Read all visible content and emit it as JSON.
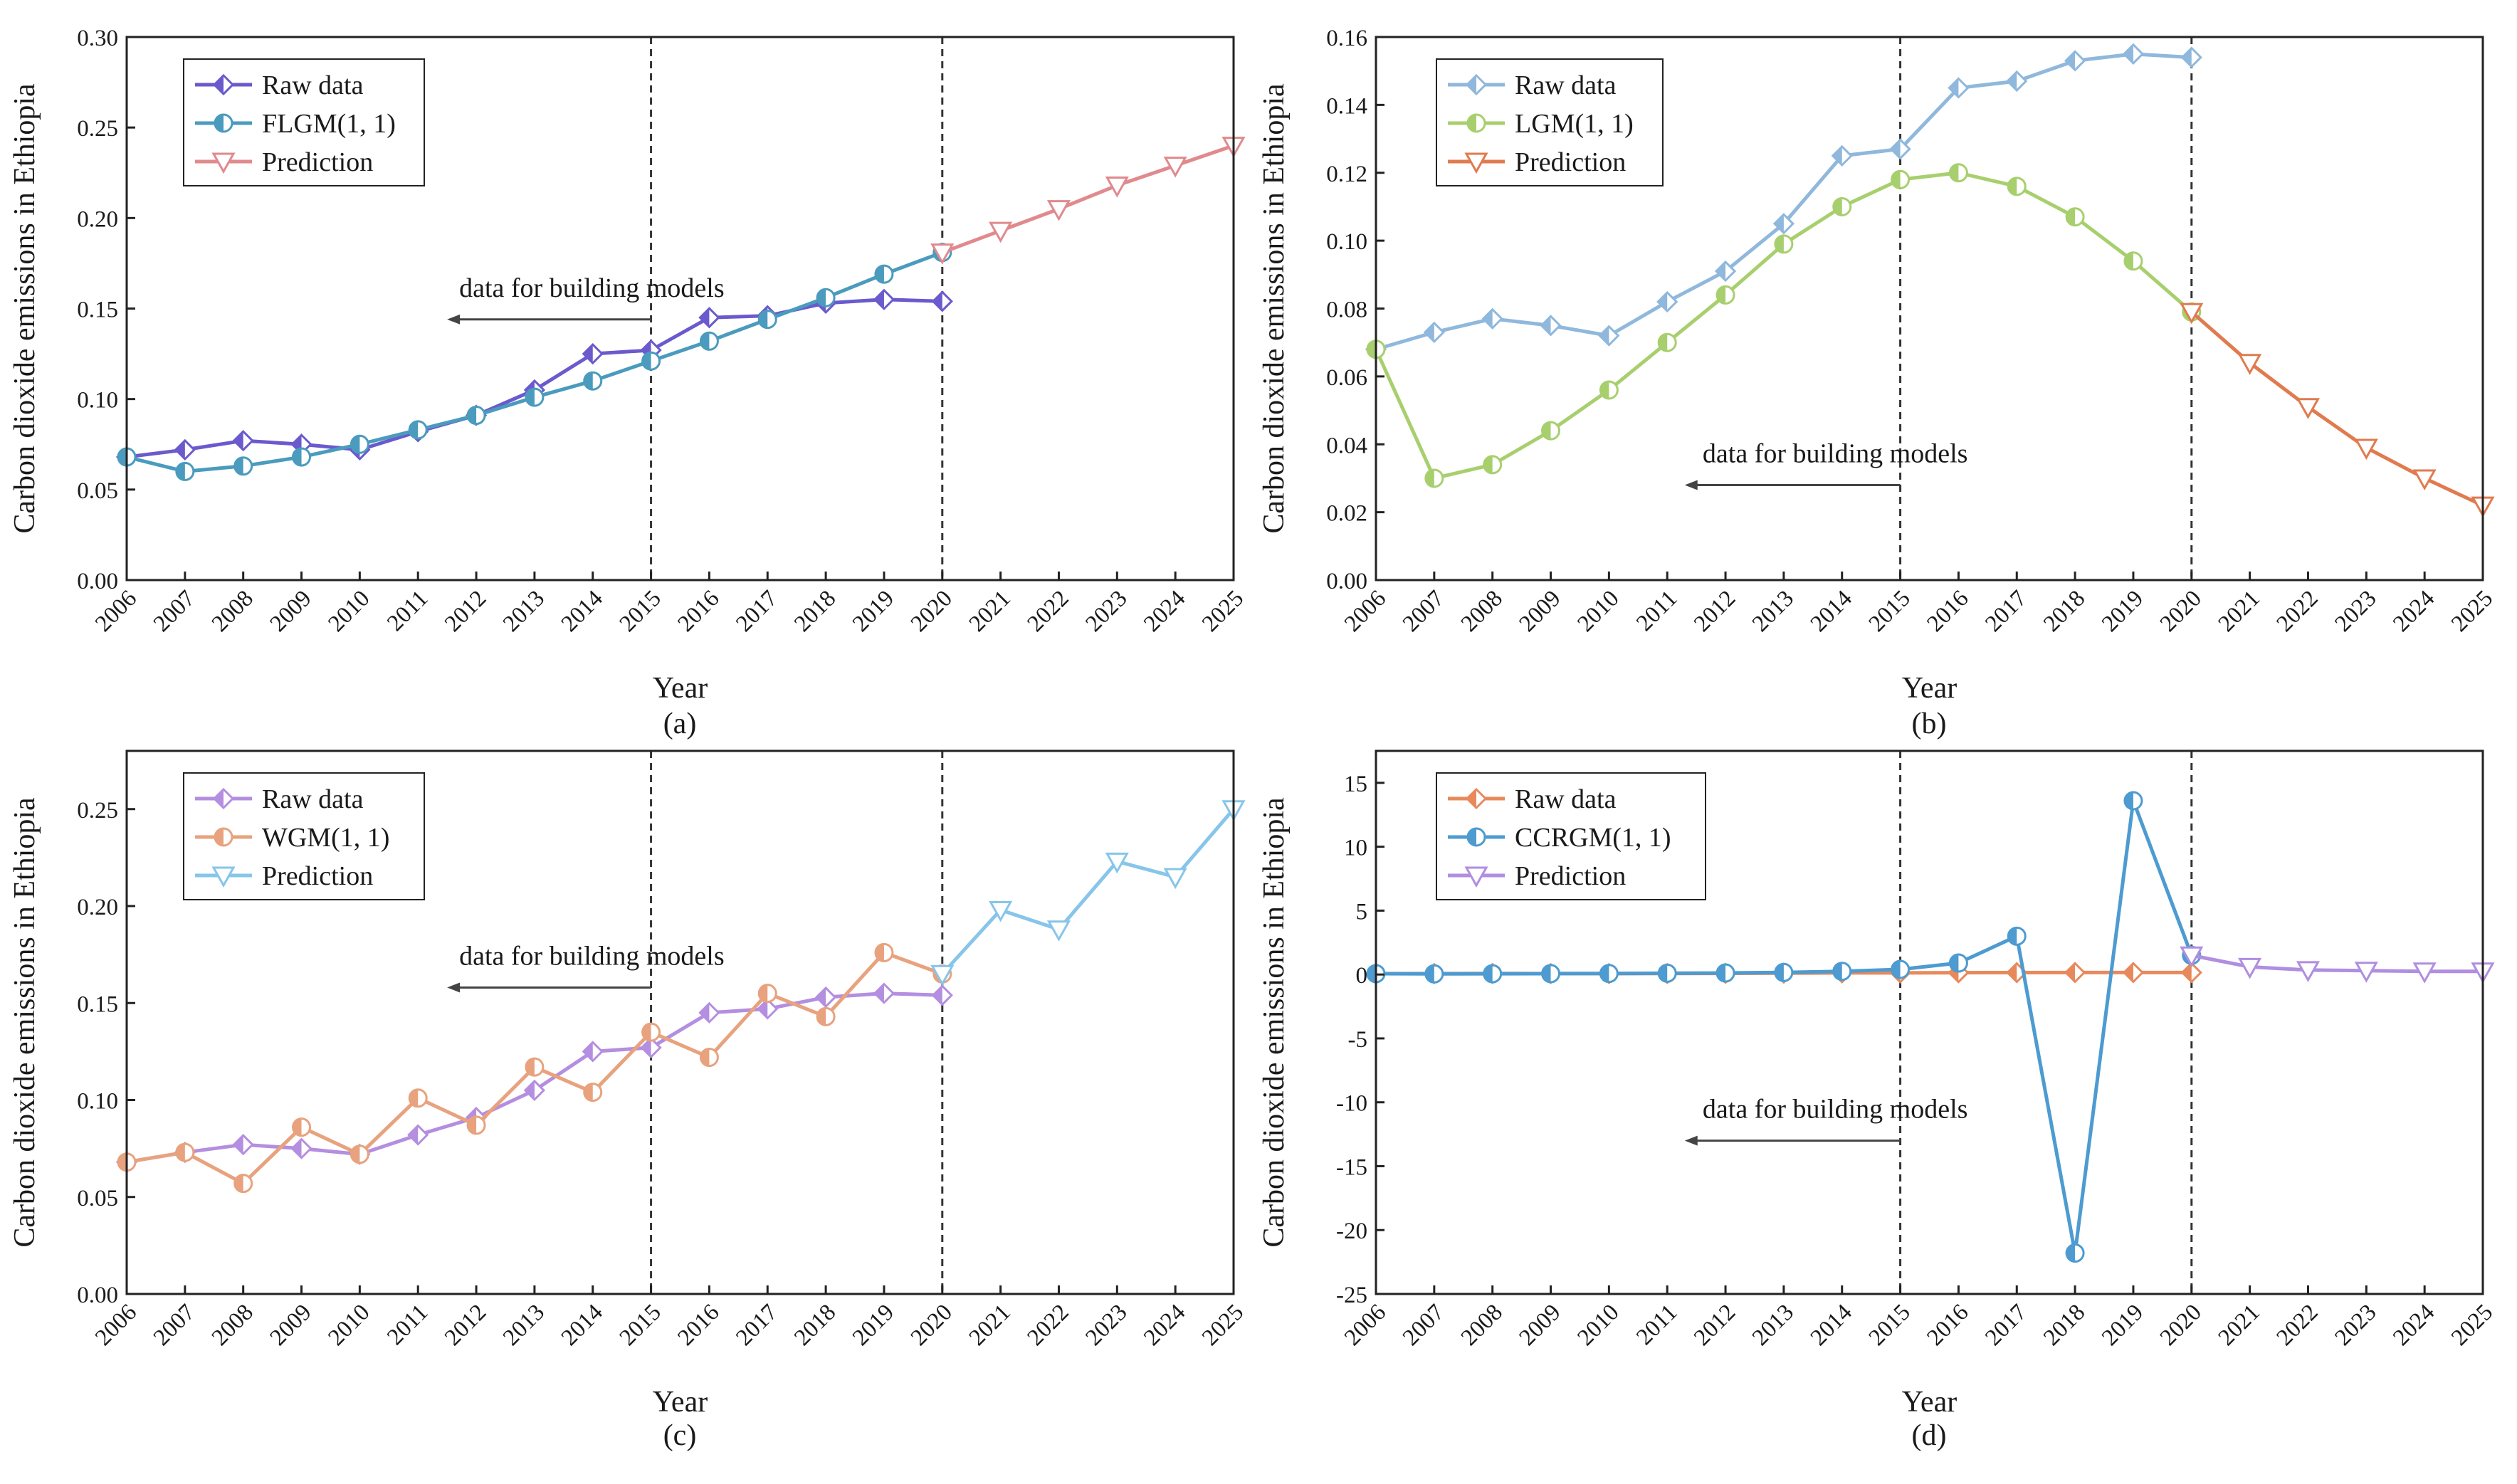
{
  "figure": {
    "background": "#ffffff"
  },
  "chart_data": [
    {
      "type": "line",
      "panel_label": "(a)",
      "title": "",
      "xlabel": "Year",
      "ylabel": "Carbon dioxide emissions in Ethiopia",
      "xlim": [
        2006,
        2025
      ],
      "ylim": [
        0,
        0.3
      ],
      "yticks": [
        "0.00",
        "0.05",
        "0.10",
        "0.15",
        "0.20",
        "0.25",
        "0.30"
      ],
      "ytick_values": [
        0,
        0.05,
        0.1,
        0.15,
        0.2,
        0.25,
        0.3
      ],
      "xticks": [
        "2006",
        "2007",
        "2008",
        "2009",
        "2010",
        "2011",
        "2012",
        "2013",
        "2014",
        "2015",
        "2016",
        "2017",
        "2018",
        "2019",
        "2020",
        "2021",
        "2022",
        "2023",
        "2024",
        "2025"
      ],
      "vlines": [
        2015,
        2020
      ],
      "annotation": {
        "text": "data for building models",
        "arrow_from_x": 2015,
        "arrow_to_x": 2011.5,
        "y": 0.144
      },
      "legend_position": "top-left",
      "series": [
        {
          "name": "Raw data",
          "marker": "diamond",
          "color": "#6a5acd",
          "x": [
            2006,
            2007,
            2008,
            2009,
            2010,
            2011,
            2012,
            2013,
            2014,
            2015,
            2016,
            2017,
            2018,
            2019,
            2020
          ],
          "values": [
            0.068,
            0.072,
            0.077,
            0.075,
            0.072,
            0.082,
            0.091,
            0.105,
            0.125,
            0.127,
            0.145,
            0.146,
            0.153,
            0.155,
            0.154
          ]
        },
        {
          "name": "FLGM(1, 1)",
          "marker": "circle",
          "color": "#4a9bbd",
          "x": [
            2006,
            2007,
            2008,
            2009,
            2010,
            2011,
            2012,
            2013,
            2014,
            2015,
            2016,
            2017,
            2018,
            2019,
            2020
          ],
          "values": [
            0.068,
            0.06,
            0.063,
            0.068,
            0.075,
            0.083,
            0.091,
            0.101,
            0.11,
            0.121,
            0.132,
            0.144,
            0.156,
            0.169,
            0.181
          ]
        },
        {
          "name": "Prediction",
          "marker": "triangle-down",
          "color": "#e08a8e",
          "x": [
            2020,
            2021,
            2022,
            2023,
            2024,
            2025
          ],
          "values": [
            0.181,
            0.193,
            0.205,
            0.218,
            0.229,
            0.24
          ]
        }
      ]
    },
    {
      "type": "line",
      "panel_label": "(b)",
      "title": "",
      "xlabel": "Year",
      "ylabel": "Carbon dioxide emissions in Ethiopia",
      "xlim": [
        2006,
        2025
      ],
      "ylim": [
        0,
        0.16
      ],
      "yticks": [
        "0.00",
        "0.02",
        "0.04",
        "0.06",
        "0.08",
        "0.10",
        "0.12",
        "0.14",
        "0.16"
      ],
      "ytick_values": [
        0,
        0.02,
        0.04,
        0.06,
        0.08,
        0.1,
        0.12,
        0.14,
        0.16
      ],
      "xticks": [
        "2006",
        "2007",
        "2008",
        "2009",
        "2010",
        "2011",
        "2012",
        "2013",
        "2014",
        "2015",
        "2016",
        "2017",
        "2018",
        "2019",
        "2020",
        "2021",
        "2022",
        "2023",
        "2024",
        "2025"
      ],
      "vlines": [
        2015,
        2020
      ],
      "annotation": {
        "text": "data for building models",
        "arrow_from_x": 2015,
        "arrow_to_x": 2011.3,
        "y": 0.028
      },
      "legend_position": "top-left-center",
      "series": [
        {
          "name": "Raw data",
          "marker": "diamond",
          "color": "#8fb8dc",
          "x": [
            2006,
            2007,
            2008,
            2009,
            2010,
            2011,
            2012,
            2013,
            2014,
            2015,
            2016,
            2017,
            2018,
            2019,
            2020
          ],
          "values": [
            0.068,
            0.073,
            0.077,
            0.075,
            0.072,
            0.082,
            0.091,
            0.105,
            0.125,
            0.127,
            0.145,
            0.147,
            0.153,
            0.155,
            0.154
          ]
        },
        {
          "name": "LGM(1, 1)",
          "marker": "circle",
          "color": "#a8cf6e",
          "x": [
            2006,
            2007,
            2008,
            2009,
            2010,
            2011,
            2012,
            2013,
            2014,
            2015,
            2016,
            2017,
            2018,
            2019,
            2020
          ],
          "values": [
            0.068,
            0.03,
            0.034,
            0.044,
            0.056,
            0.07,
            0.084,
            0.099,
            0.11,
            0.118,
            0.12,
            0.116,
            0.107,
            0.094,
            0.079
          ]
        },
        {
          "name": "Prediction",
          "marker": "triangle-down",
          "color": "#e07b4f",
          "x": [
            2020,
            2021,
            2022,
            2023,
            2024,
            2025
          ],
          "values": [
            0.079,
            0.064,
            0.051,
            0.039,
            0.03,
            0.022
          ]
        }
      ]
    },
    {
      "type": "line",
      "panel_label": "(c)",
      "title": "",
      "xlabel": "Year",
      "ylabel": "Carbon dioxide emissions in Ethiopia",
      "xlim": [
        2006,
        2025
      ],
      "ylim": [
        0,
        0.28
      ],
      "yticks": [
        "0.00",
        "0.05",
        "0.10",
        "0.15",
        "0.20",
        "0.25"
      ],
      "ytick_values": [
        0,
        0.05,
        0.1,
        0.15,
        0.2,
        0.25
      ],
      "xticks": [
        "2006",
        "2007",
        "2008",
        "2009",
        "2010",
        "2011",
        "2012",
        "2013",
        "2014",
        "2015",
        "2016",
        "2017",
        "2018",
        "2019",
        "2020",
        "2021",
        "2022",
        "2023",
        "2024",
        "2025"
      ],
      "vlines": [
        2015,
        2020
      ],
      "annotation": {
        "text": "data for building models",
        "arrow_from_x": 2015,
        "arrow_to_x": 2011.5,
        "y": 0.158
      },
      "legend_position": "top-left",
      "series": [
        {
          "name": "Raw data",
          "marker": "diamond",
          "color": "#b48ee0",
          "x": [
            2006,
            2007,
            2008,
            2009,
            2010,
            2011,
            2012,
            2013,
            2014,
            2015,
            2016,
            2017,
            2018,
            2019,
            2020
          ],
          "values": [
            0.068,
            0.073,
            0.077,
            0.075,
            0.072,
            0.082,
            0.091,
            0.105,
            0.125,
            0.127,
            0.145,
            0.147,
            0.153,
            0.155,
            0.154
          ]
        },
        {
          "name": "WGM(1, 1)",
          "marker": "circle",
          "color": "#e8a27e",
          "x": [
            2006,
            2007,
            2008,
            2009,
            2010,
            2011,
            2012,
            2013,
            2014,
            2015,
            2016,
            2017,
            2018,
            2019,
            2020
          ],
          "values": [
            0.068,
            0.073,
            0.057,
            0.086,
            0.072,
            0.101,
            0.087,
            0.117,
            0.104,
            0.135,
            0.122,
            0.155,
            0.143,
            0.176,
            0.165
          ]
        },
        {
          "name": "Prediction",
          "marker": "triangle-down",
          "color": "#87c5ea",
          "x": [
            2020,
            2021,
            2022,
            2023,
            2024,
            2025
          ],
          "values": [
            0.165,
            0.198,
            0.188,
            0.223,
            0.215,
            0.25
          ]
        }
      ]
    },
    {
      "type": "line",
      "panel_label": "(d)",
      "title": "",
      "xlabel": "Year",
      "ylabel": "Carbon dioxide emissions in Ethiopia",
      "xlim": [
        2006,
        2025
      ],
      "ylim": [
        -25,
        17.5
      ],
      "yticks": [
        "-25",
        "-20",
        "-15",
        "-10",
        "-5",
        "0",
        "5",
        "10",
        "15"
      ],
      "ytick_values": [
        -25,
        -20,
        -15,
        -10,
        -5,
        0,
        5,
        10,
        15
      ],
      "xticks": [
        "2006",
        "2007",
        "2008",
        "2009",
        "2010",
        "2011",
        "2012",
        "2013",
        "2014",
        "2015",
        "2016",
        "2017",
        "2018",
        "2019",
        "2020",
        "2021",
        "2022",
        "2023",
        "2024",
        "2025"
      ],
      "vlines": [
        2015,
        2020
      ],
      "annotation": {
        "text": "data for building models",
        "arrow_from_x": 2015,
        "arrow_to_x": 2011.3,
        "y": -13
      },
      "legend_position": "top-left-center",
      "series": [
        {
          "name": "Raw data",
          "marker": "diamond",
          "color": "#e8895c",
          "x": [
            2006,
            2007,
            2008,
            2009,
            2010,
            2011,
            2012,
            2013,
            2014,
            2015,
            2016,
            2017,
            2018,
            2019,
            2020
          ],
          "values": [
            0.068,
            0.073,
            0.077,
            0.075,
            0.072,
            0.082,
            0.091,
            0.105,
            0.125,
            0.127,
            0.145,
            0.147,
            0.153,
            0.155,
            0.154
          ]
        },
        {
          "name": "CCRGM(1, 1)",
          "marker": "circle",
          "color": "#4d9bd0",
          "x": [
            2006,
            2007,
            2008,
            2009,
            2010,
            2011,
            2012,
            2013,
            2014,
            2015,
            2016,
            2017,
            2018,
            2019,
            2020
          ],
          "values": [
            0.068,
            0.05,
            0.06,
            0.07,
            0.08,
            0.1,
            0.12,
            0.16,
            0.25,
            0.4,
            0.9,
            3.0,
            -21.8,
            13.6,
            1.5
          ]
        },
        {
          "name": "Prediction",
          "marker": "triangle-down",
          "color": "#b08ee0",
          "x": [
            2020,
            2021,
            2022,
            2023,
            2024,
            2025
          ],
          "values": [
            1.5,
            0.6,
            0.35,
            0.3,
            0.25,
            0.25
          ]
        }
      ]
    }
  ]
}
